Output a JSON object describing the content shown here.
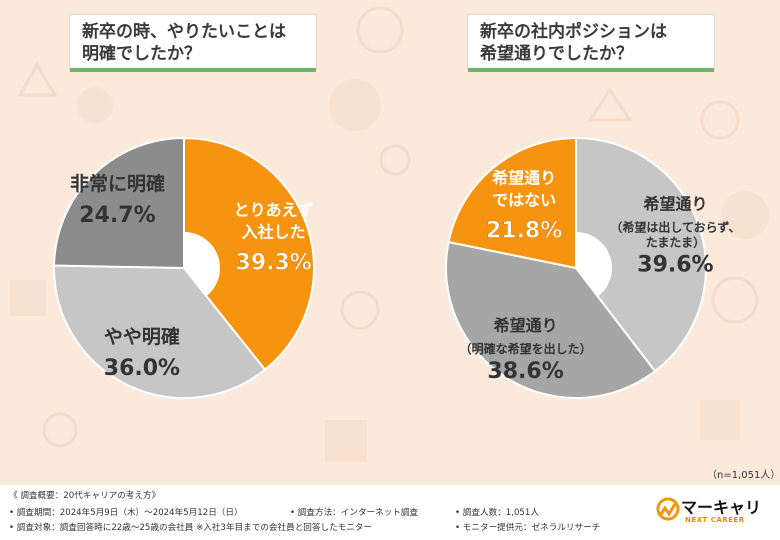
{
  "colors": {
    "orange": "#f7940f",
    "dark_gray": "#8c8c8c",
    "mid_gray": "#a6a6a6",
    "light_gray": "#c6c6c6",
    "bg": "#fbe9dc",
    "green": "#6db36a"
  },
  "chart_data": [
    {
      "type": "pie",
      "title_lines": [
        "新卒の時、やりたいことは",
        "明確でしたか？"
      ],
      "slices": [
        {
          "label_lines": [
            "とりあえず",
            "入社した"
          ],
          "value": 39.3,
          "color": "#f7940f",
          "text_color": "#ffffff",
          "value_text": "39.3%"
        },
        {
          "label_lines": [
            "やや明確"
          ],
          "value": 36.0,
          "color": "#c6c6c6",
          "text_color": "#333333",
          "value_text": "36.0%"
        },
        {
          "label_lines": [
            "非常に明確"
          ],
          "value": 24.7,
          "color": "#8c8c8c",
          "text_color": "#333333",
          "value_text": "24.7%"
        }
      ]
    },
    {
      "type": "pie",
      "title_lines": [
        "新卒の社内ポジションは",
        "希望通りでしたか？"
      ],
      "slices": [
        {
          "label_lines": [
            "希望通り",
            "（希望は出しておらず、",
            "たまたま）"
          ],
          "value": 39.6,
          "color": "#c6c6c6",
          "text_color": "#333333",
          "value_text": "39.6%"
        },
        {
          "label_lines": [
            "希望通り",
            "（明確な希望を出した）"
          ],
          "value": 38.6,
          "color": "#a6a6a6",
          "text_color": "#333333",
          "value_text": "38.6%"
        },
        {
          "label_lines": [
            "希望通り",
            "ではない"
          ],
          "value": 21.8,
          "color": "#f7940f",
          "text_color": "#ffffff",
          "value_text": "21.8%"
        }
      ]
    }
  ],
  "sample_size": "（n=1,051人）",
  "footer": {
    "overview": "《 調査概要：20代キャリアの考え方》",
    "period": "• 調査期間：2024年5月9日（木）～2024年5月12日（日）",
    "method": "• 調査方法：インターネット調査",
    "count": "• 調査人数：1,051人",
    "target": "• 調査対象：調査回答時に22歳～25歳の会社員 ※入社3年目までの会社員と回答したモニター",
    "provider": "• モニター提供元：ゼネラルリサーチ"
  },
  "logo": {
    "name": "マーキャリ",
    "sub": "NEXT CAREER"
  }
}
